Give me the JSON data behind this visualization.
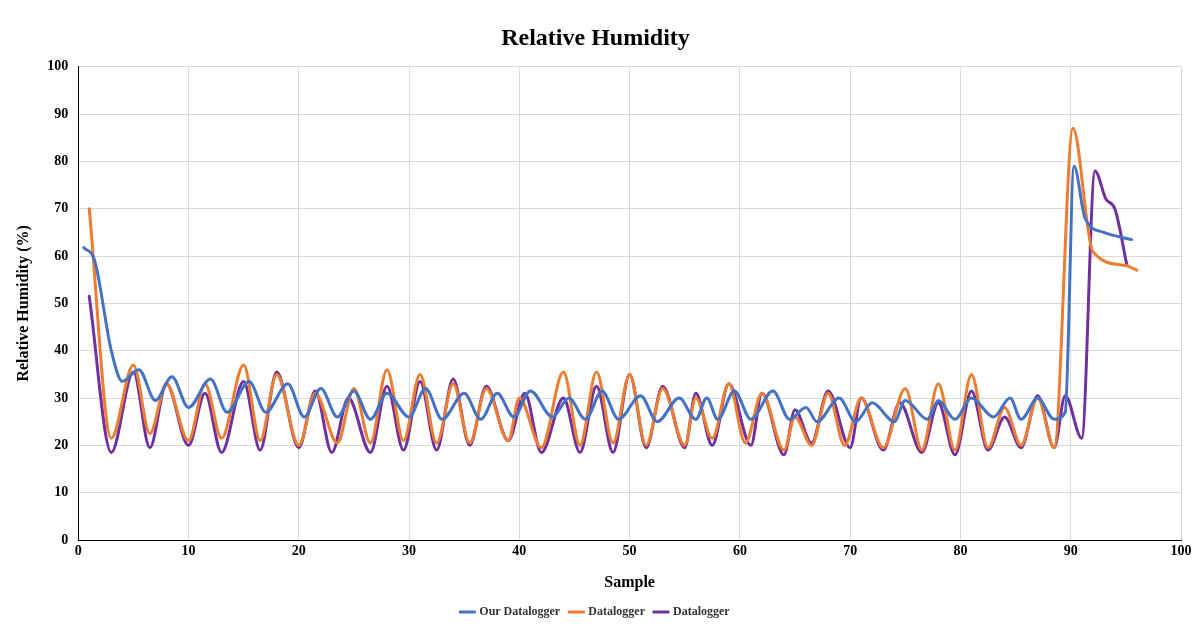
{
  "chart_data": {
    "type": "line",
    "title": "Relative Humidity",
    "xlabel": "Sample",
    "ylabel": "Relative Humidity (%)",
    "xlim": [
      0,
      100
    ],
    "xticks": [
      0,
      10,
      20,
      30,
      40,
      50,
      60,
      70,
      80,
      90,
      100
    ],
    "ylim": [
      0,
      100
    ],
    "yticks": [
      0,
      10,
      20,
      30,
      40,
      50,
      60,
      70,
      80,
      90,
      100
    ],
    "grid": true,
    "legend": "bottom",
    "marker": "none",
    "line_style": "solid",
    "series": [
      {
        "name": "Our Datalogger",
        "color": "#4472c4",
        "x": [
          0.5,
          1.5,
          3,
          4,
          5.5,
          7,
          8.5,
          10,
          12,
          13.5,
          15.5,
          17,
          19,
          20.5,
          22,
          23.5,
          25,
          26.5,
          28,
          30,
          31.5,
          33,
          35,
          36.5,
          38,
          39.5,
          41,
          43,
          44.5,
          46,
          47.5,
          49,
          51,
          52.5,
          54.5,
          56,
          57,
          58,
          59.5,
          61,
          63,
          64.5,
          66,
          67,
          69,
          70.5,
          72,
          74,
          75,
          77,
          78,
          79.5,
          81,
          83,
          84.5,
          85.5,
          87,
          88.5,
          89.5,
          90.3,
          91.3,
          93,
          95.5
        ],
        "values": [
          61.8,
          59,
          40,
          33.5,
          36,
          29.5,
          34.5,
          28,
          34,
          27,
          33.5,
          27,
          33,
          26,
          32,
          26,
          31.5,
          25.5,
          31,
          26,
          32,
          25.5,
          31,
          25.5,
          31,
          26,
          31.5,
          26,
          30,
          25.5,
          31.5,
          25.5,
          30.5,
          25,
          30,
          25.5,
          30,
          25.5,
          31.5,
          25.5,
          31.5,
          25.5,
          28,
          25,
          30,
          25,
          29,
          25,
          29.5,
          25.5,
          29.5,
          25.5,
          30,
          26,
          30,
          25.5,
          30,
          25.5,
          27,
          79,
          68,
          65,
          63.5
        ]
      },
      {
        "name": "Datalogger",
        "color": "#ed7d31",
        "x": [
          1,
          3,
          5,
          6.5,
          8,
          10,
          11.5,
          13,
          15,
          16.5,
          18,
          20,
          21.5,
          23.5,
          25,
          26.5,
          28,
          29.5,
          31,
          32.5,
          34,
          35.5,
          37,
          39,
          40,
          42,
          44,
          45.5,
          47,
          48.5,
          50,
          51.5,
          53,
          55,
          56,
          57.5,
          59,
          60.5,
          62,
          64,
          65,
          66.5,
          68,
          69.5,
          71,
          73,
          75,
          76.5,
          78,
          79.5,
          81,
          82.5,
          84,
          85.5,
          87,
          88.5,
          90.2,
          92,
          95,
          96
        ],
        "values": [
          70,
          21.5,
          37,
          22.5,
          33,
          21,
          33,
          21.5,
          37,
          21,
          35,
          20,
          31,
          20.5,
          32,
          20.5,
          36,
          21,
          35,
          20.5,
          33,
          20.5,
          32,
          21,
          30,
          19.5,
          35.5,
          20,
          35.5,
          20.5,
          35,
          20,
          32,
          20,
          30,
          21.5,
          33,
          20.5,
          31,
          19,
          26,
          20,
          31,
          20,
          30,
          19.5,
          32,
          19,
          33,
          19,
          35,
          19.5,
          28,
          20,
          30,
          19.5,
          87,
          61,
          58,
          57
        ]
      },
      {
        "name": "Datalogger",
        "color": "#7030a0",
        "x": [
          1,
          3,
          5,
          6.5,
          8,
          10,
          11.5,
          13,
          15,
          16.5,
          18,
          20,
          21.5,
          23,
          24.5,
          26.5,
          28,
          29.5,
          31,
          32.5,
          34,
          35.5,
          37,
          39,
          40.5,
          42,
          44,
          45.5,
          47,
          48.5,
          50,
          51.5,
          53,
          55,
          56,
          57.5,
          59,
          61,
          62,
          64,
          65,
          66.5,
          68,
          70,
          71,
          73,
          74.5,
          76.5,
          78,
          79.5,
          81,
          82.5,
          84,
          85.5,
          87,
          88.5,
          89.5,
          91,
          92.2,
          93.2,
          94,
          95.1
        ],
        "values": [
          51.5,
          18.5,
          35.5,
          19.5,
          33,
          20,
          31,
          18.5,
          33.5,
          19,
          35.5,
          19.5,
          31.5,
          18.5,
          30,
          18.5,
          32.5,
          19,
          33.5,
          19,
          34,
          20,
          32.5,
          21,
          31,
          18.5,
          30,
          18.5,
          32.5,
          18.5,
          35,
          19.5,
          32.5,
          19.5,
          31,
          20,
          33,
          20,
          31,
          18,
          27.5,
          20.5,
          31.5,
          19.5,
          30,
          19,
          29,
          18.5,
          29,
          18,
          31.5,
          19,
          26,
          19.5,
          30.5,
          19.5,
          30.5,
          21.5,
          78,
          72,
          70,
          58
        ]
      }
    ]
  }
}
